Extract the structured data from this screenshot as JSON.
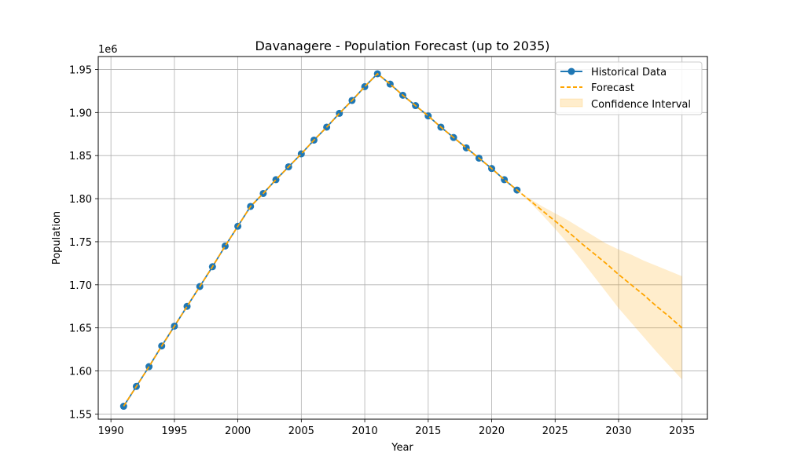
{
  "chart_data": {
    "type": "line",
    "title": "Davanagere - Population Forecast (up to 2035)",
    "xlabel": "Year",
    "ylabel": "Population",
    "y_multiplier": "1e6",
    "xlim": [
      1989,
      2037
    ],
    "ylim": [
      1544000,
      1965000
    ],
    "x_ticks": [
      1990,
      1995,
      2000,
      2005,
      2010,
      2015,
      2020,
      2025,
      2030,
      2035
    ],
    "y_ticks": [
      1.55,
      1.6,
      1.65,
      1.7,
      1.75,
      1.8,
      1.85,
      1.9,
      1.95
    ],
    "y_tick_labels": [
      "1.55",
      "1.60",
      "1.65",
      "1.70",
      "1.75",
      "1.80",
      "1.85",
      "1.90",
      "1.95"
    ],
    "grid": true,
    "legend_position": "top-right",
    "series": [
      {
        "name": "Historical Data",
        "style": "line-marker",
        "color": "#1f77b4",
        "x": [
          1991,
          1992,
          1993,
          1994,
          1995,
          1996,
          1997,
          1998,
          1999,
          2000,
          2001,
          2002,
          2003,
          2004,
          2005,
          2006,
          2007,
          2008,
          2009,
          2010,
          2011,
          2012,
          2013,
          2014,
          2015,
          2016,
          2017,
          2018,
          2019,
          2020,
          2021,
          2022
        ],
        "y": [
          1559000,
          1582000,
          1605000,
          1629000,
          1652000,
          1675000,
          1698000,
          1721000,
          1745000,
          1768000,
          1791000,
          1806000,
          1822000,
          1837000,
          1852000,
          1868000,
          1883000,
          1899000,
          1914000,
          1930000,
          1945000,
          1933000,
          1920000,
          1908000,
          1896000,
          1883000,
          1871000,
          1859000,
          1847000,
          1835000,
          1822000,
          1810000
        ]
      },
      {
        "name": "Forecast",
        "style": "dashed",
        "color": "#ffa500",
        "x": [
          1991,
          1992,
          1993,
          1994,
          1995,
          1996,
          1997,
          1998,
          1999,
          2000,
          2001,
          2002,
          2003,
          2004,
          2005,
          2006,
          2007,
          2008,
          2009,
          2010,
          2011,
          2012,
          2013,
          2014,
          2015,
          2016,
          2017,
          2018,
          2019,
          2020,
          2021,
          2022,
          2023,
          2024,
          2025,
          2026,
          2027,
          2028,
          2029,
          2030,
          2031,
          2032,
          2033,
          2034,
          2035
        ],
        "y": [
          1559000,
          1582000,
          1605000,
          1629000,
          1652000,
          1675000,
          1698000,
          1721000,
          1745000,
          1768000,
          1791000,
          1806000,
          1822000,
          1837000,
          1852000,
          1868000,
          1883000,
          1899000,
          1914000,
          1930000,
          1945000,
          1933000,
          1920000,
          1908000,
          1896000,
          1883000,
          1871000,
          1859000,
          1847000,
          1835000,
          1822000,
          1810000,
          1798000,
          1786000,
          1774000,
          1762000,
          1749000,
          1737000,
          1725000,
          1712000,
          1700000,
          1688000,
          1675000,
          1663000,
          1650000
        ]
      },
      {
        "name": "Confidence Interval",
        "style": "band",
        "color": "#ffa500",
        "x": [
          2022,
          2023,
          2024,
          2025,
          2026,
          2027,
          2028,
          2029,
          2030,
          2031,
          2032,
          2033,
          2034,
          2035
        ],
        "lower": [
          1810000,
          1796000,
          1781000,
          1765000,
          1748000,
          1730000,
          1711000,
          1692000,
          1673000,
          1656000,
          1639000,
          1622000,
          1606000,
          1590000
        ],
        "upper": [
          1810000,
          1800000,
          1791000,
          1783000,
          1775000,
          1766000,
          1757000,
          1748000,
          1741000,
          1735000,
          1728000,
          1722000,
          1716000,
          1710000
        ]
      }
    ]
  }
}
